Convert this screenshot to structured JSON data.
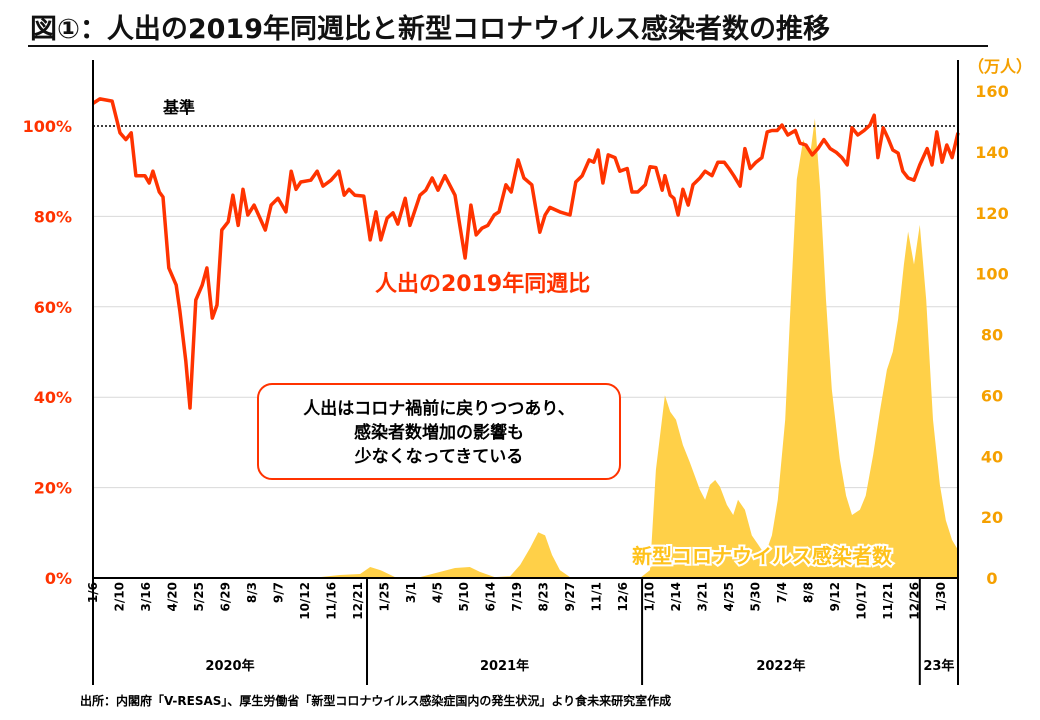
{
  "chart_data": {
    "type": "line+area",
    "title": "図①：人出の2019年同週比と新型コロナウイルス感染者数の推移",
    "x_unit": "weeks since 2020-01-06",
    "x_tick_labels": [
      "1/6",
      "2/10",
      "3/16",
      "4/20",
      "5/25",
      "6/29",
      "8/3",
      "9/7",
      "10/12",
      "11/16",
      "12/21",
      "1/25",
      "3/1",
      "4/5",
      "5/10",
      "6/14",
      "7/19",
      "8/23",
      "9/27",
      "11/1",
      "12/6",
      "1/10",
      "2/14",
      "3/21",
      "4/25",
      "5/30",
      "7/4",
      "8/8",
      "9/12",
      "10/17",
      "11/21",
      "12/26",
      "1/30"
    ],
    "x_tick_step_weeks": 5,
    "years": [
      {
        "label": "2020年",
        "start": 0,
        "end": 51.7
      },
      {
        "label": "2021年",
        "start": 51.7,
        "end": 103.6
      },
      {
        "label": "2022年",
        "start": 103.6,
        "end": 156
      },
      {
        "label": "23年",
        "start": 156,
        "end": 163.2
      }
    ],
    "left_axis": {
      "ticks": [
        "0%",
        "20%",
        "40%",
        "60%",
        "80%",
        "100%"
      ],
      "values": [
        0,
        20,
        40,
        60,
        80,
        100
      ],
      "ylim": [
        0,
        100
      ]
    },
    "right_axis": {
      "unit": "（万人）",
      "ticks": [
        "0",
        "20",
        "40",
        "60",
        "80",
        "100",
        "120",
        "140",
        "160"
      ],
      "values": [
        0,
        20,
        40,
        60,
        80,
        100,
        120,
        140,
        160
      ],
      "ylim": [
        0,
        160
      ]
    },
    "reference_line": {
      "value": 100,
      "label": "基準"
    },
    "grid": true,
    "series": [
      {
        "name": "人出の2019年同週比",
        "axis": "left",
        "type": "line",
        "color": "#ff3300",
        "unit": "%",
        "points": [
          [
            0,
            105
          ],
          [
            1.3,
            106
          ],
          [
            3.6,
            105.5
          ],
          [
            5.1,
            98.5
          ],
          [
            6.2,
            97
          ],
          [
            7.2,
            98.5
          ],
          [
            8.1,
            89
          ],
          [
            9.8,
            89
          ],
          [
            10.6,
            87.4
          ],
          [
            11.3,
            90
          ],
          [
            12.5,
            85.4
          ],
          [
            13.2,
            84.3
          ],
          [
            14.3,
            68.6
          ],
          [
            15.7,
            64.8
          ],
          [
            16.4,
            59
          ],
          [
            17.5,
            48
          ],
          [
            18.3,
            37.6
          ],
          [
            19.4,
            61.5
          ],
          [
            20.6,
            64.8
          ],
          [
            21.5,
            68.6
          ],
          [
            22.5,
            57.5
          ],
          [
            23.4,
            60.4
          ],
          [
            24.3,
            77
          ],
          [
            25.5,
            78.8
          ],
          [
            26.4,
            84.7
          ],
          [
            27.4,
            78
          ],
          [
            28.3,
            86
          ],
          [
            29.2,
            80.3
          ],
          [
            30.4,
            82.5
          ],
          [
            32.5,
            77
          ],
          [
            33.6,
            82.5
          ],
          [
            34.9,
            84
          ],
          [
            36.4,
            81
          ],
          [
            37.4,
            90
          ],
          [
            38.3,
            86
          ],
          [
            39.2,
            87.6
          ],
          [
            41.1,
            88
          ],
          [
            42.3,
            90
          ],
          [
            43.4,
            86.7
          ],
          [
            44.9,
            88
          ],
          [
            46.4,
            90
          ],
          [
            47.4,
            84.7
          ],
          [
            48.3,
            86
          ],
          [
            49.4,
            84.7
          ],
          [
            51.1,
            84.5
          ],
          [
            52.3,
            74.8
          ],
          [
            53.4,
            81
          ],
          [
            54.3,
            74.8
          ],
          [
            55.5,
            79.6
          ],
          [
            56.6,
            80.8
          ],
          [
            57.5,
            78.3
          ],
          [
            58.9,
            84
          ],
          [
            59.8,
            78
          ],
          [
            61.7,
            84.7
          ],
          [
            62.8,
            85.8
          ],
          [
            64,
            88.5
          ],
          [
            65.1,
            85.8
          ],
          [
            66.4,
            89
          ],
          [
            68.3,
            84.7
          ],
          [
            69.2,
            78
          ],
          [
            70.2,
            70.8
          ],
          [
            71.3,
            82.5
          ],
          [
            72.3,
            75.9
          ],
          [
            73.4,
            77.4
          ],
          [
            74.5,
            78
          ],
          [
            75.7,
            80.3
          ],
          [
            76.6,
            81
          ],
          [
            77.9,
            87
          ],
          [
            78.9,
            85.4
          ],
          [
            80.2,
            92.5
          ],
          [
            81.3,
            88.5
          ],
          [
            82.8,
            87
          ],
          [
            84.3,
            76.5
          ],
          [
            85.3,
            80.3
          ],
          [
            86.2,
            82
          ],
          [
            88.1,
            81
          ],
          [
            90,
            80.3
          ],
          [
            91.1,
            87.6
          ],
          [
            92.3,
            89
          ],
          [
            93.6,
            92.5
          ],
          [
            94.5,
            92
          ],
          [
            95.3,
            94.7
          ],
          [
            96.2,
            87.4
          ],
          [
            97.2,
            93.6
          ],
          [
            98.5,
            93
          ],
          [
            99.4,
            90
          ],
          [
            100.8,
            90.6
          ],
          [
            101.7,
            85.4
          ],
          [
            102.8,
            85.4
          ],
          [
            104.2,
            87
          ],
          [
            105.1,
            91
          ],
          [
            106.2,
            90.8
          ],
          [
            107.4,
            85.8
          ],
          [
            107.9,
            89
          ],
          [
            108.9,
            84.7
          ],
          [
            109.6,
            84
          ],
          [
            110.4,
            80.3
          ],
          [
            111.3,
            86
          ],
          [
            112.3,
            82.5
          ],
          [
            113.2,
            87
          ],
          [
            114.5,
            88.5
          ],
          [
            115.5,
            90
          ],
          [
            116.8,
            89
          ],
          [
            117.9,
            92
          ],
          [
            119.1,
            92
          ],
          [
            120,
            90.6
          ],
          [
            120.9,
            89
          ],
          [
            122.1,
            86.7
          ],
          [
            123,
            95
          ],
          [
            124,
            90.6
          ],
          [
            125.1,
            92
          ],
          [
            126.2,
            93
          ],
          [
            127.2,
            98.7
          ],
          [
            128.1,
            99
          ],
          [
            129.1,
            99
          ],
          [
            130,
            100.2
          ],
          [
            131.1,
            98
          ],
          [
            132.5,
            99
          ],
          [
            133.4,
            96.2
          ],
          [
            134.5,
            95.8
          ],
          [
            135.7,
            93.6
          ],
          [
            136.8,
            95
          ],
          [
            137.9,
            97
          ],
          [
            139.1,
            95
          ],
          [
            140.2,
            94.2
          ],
          [
            141.3,
            93
          ],
          [
            142.3,
            91.4
          ],
          [
            143.2,
            99.6
          ],
          [
            144.3,
            98
          ],
          [
            145.5,
            99
          ],
          [
            146.6,
            100.2
          ],
          [
            147.4,
            102.4
          ],
          [
            148.1,
            93
          ],
          [
            149.1,
            99.6
          ],
          [
            150,
            97.3
          ],
          [
            150.9,
            94.7
          ],
          [
            151.9,
            94
          ],
          [
            152.8,
            90
          ],
          [
            153.8,
            88.5
          ],
          [
            154.9,
            88
          ],
          [
            156,
            91.4
          ],
          [
            157.4,
            95
          ],
          [
            158.3,
            91.4
          ],
          [
            159.2,
            98.7
          ],
          [
            160.2,
            92
          ],
          [
            161.1,
            95.8
          ],
          [
            162.1,
            93
          ],
          [
            163.2,
            98.5
          ]
        ]
      },
      {
        "name": "新型コロナウイルス感染者数",
        "axis": "right",
        "type": "area",
        "color": "#ffd048",
        "unit": "万人",
        "points": [
          [
            0,
            0
          ],
          [
            27.7,
            0.3
          ],
          [
            30.6,
            0
          ],
          [
            42.8,
            0.3
          ],
          [
            46.6,
            1
          ],
          [
            50.4,
            1.3
          ],
          [
            52.3,
            3.6
          ],
          [
            54.2,
            2.6
          ],
          [
            57,
            0.3
          ],
          [
            61.7,
            0.3
          ],
          [
            65.5,
            2
          ],
          [
            68.3,
            3.3
          ],
          [
            71.1,
            3.6
          ],
          [
            73,
            2
          ],
          [
            75.8,
            0.3
          ],
          [
            78.7,
            0.6
          ],
          [
            80.6,
            4.3
          ],
          [
            82.5,
            10
          ],
          [
            84,
            15
          ],
          [
            85.3,
            14
          ],
          [
            86.6,
            7.6
          ],
          [
            88.1,
            2.6
          ],
          [
            90,
            0.3
          ],
          [
            103.2,
            0
          ],
          [
            105.1,
            2.6
          ],
          [
            106.2,
            35.5
          ],
          [
            107.9,
            60
          ],
          [
            108.9,
            54.6
          ],
          [
            110,
            52
          ],
          [
            111.3,
            43.7
          ],
          [
            112.6,
            38
          ],
          [
            114.5,
            29
          ],
          [
            115.5,
            25.7
          ],
          [
            116.4,
            30.6
          ],
          [
            117.4,
            32.2
          ],
          [
            118.3,
            30
          ],
          [
            119.6,
            24
          ],
          [
            120.8,
            20.7
          ],
          [
            121.7,
            25.7
          ],
          [
            123,
            22.4
          ],
          [
            124.3,
            14
          ],
          [
            125.5,
            11
          ],
          [
            126.8,
            7.6
          ],
          [
            128.1,
            14
          ],
          [
            129.2,
            25.7
          ],
          [
            130.6,
            52
          ],
          [
            131.5,
            85
          ],
          [
            132.8,
            131
          ],
          [
            134,
            144
          ],
          [
            135.3,
            139
          ],
          [
            136.2,
            151
          ],
          [
            137.2,
            127.6
          ],
          [
            138.3,
            91.4
          ],
          [
            139.4,
            62
          ],
          [
            140.9,
            39
          ],
          [
            142.1,
            27
          ],
          [
            143.2,
            20.7
          ],
          [
            144.7,
            22.4
          ],
          [
            145.8,
            27
          ],
          [
            147.2,
            40.5
          ],
          [
            148.5,
            55
          ],
          [
            149.8,
            68.4
          ],
          [
            150.9,
            74.3
          ],
          [
            151.9,
            85
          ],
          [
            153,
            103
          ],
          [
            153.8,
            113.8
          ],
          [
            154.9,
            103
          ],
          [
            156,
            116
          ],
          [
            157.2,
            91.4
          ],
          [
            158.5,
            52
          ],
          [
            159.8,
            30.6
          ],
          [
            160.9,
            19
          ],
          [
            162.1,
            12.5
          ],
          [
            163.2,
            9.2
          ]
        ]
      }
    ],
    "annotations": {
      "line_label": "人出の2019年同週比",
      "area_label": "新型コロナウイルス感染者数",
      "callout": [
        "人出はコロナ禍前に戻りつつあり、",
        "感染者数増加の影響も",
        "少なくなってきている"
      ]
    },
    "source": "出所：内閣府「V-RESAS」、厚生労働省「新型コロナウイルス感染症国内の発生状況」より食未来研究室作成"
  }
}
